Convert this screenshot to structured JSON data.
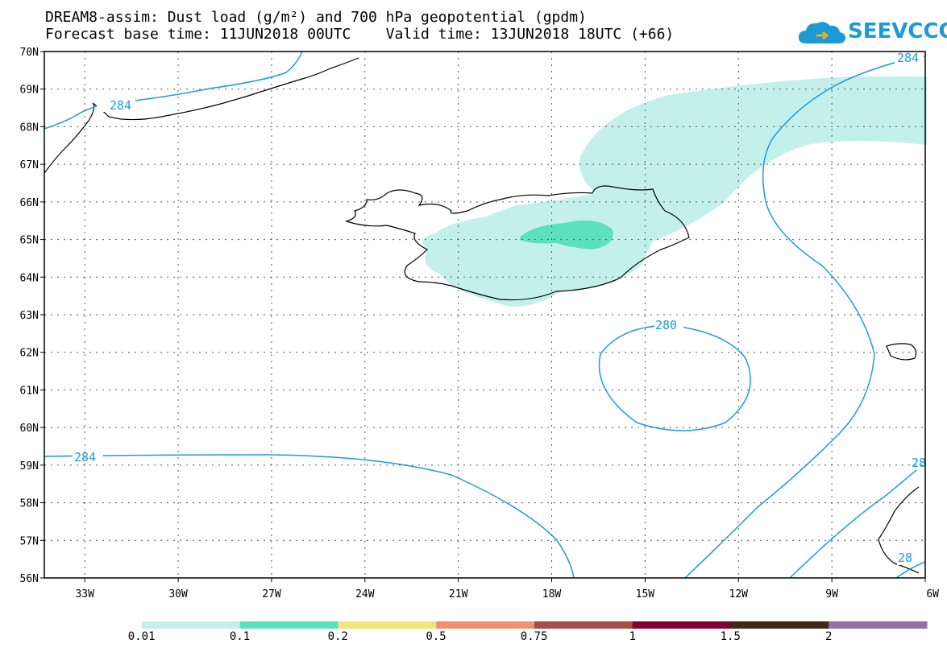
{
  "title": {
    "line1": "DREAM8-assim: Dust load (g/m²) and 700 hPa geopotential (gpdm)",
    "line2": "Forecast base time: 11JUN2018 00UTC    Valid time: 13JUN2018 18UTC (+66)"
  },
  "logo": {
    "text": "SEEVCCC"
  },
  "axes": {
    "lat_labels": [
      "70N",
      "69N",
      "68N",
      "67N",
      "66N",
      "65N",
      "64N",
      "63N",
      "62N",
      "61N",
      "60N",
      "59N",
      "58N",
      "57N",
      "56N"
    ],
    "lon_labels": [
      "33W",
      "30W",
      "27W",
      "24W",
      "21W",
      "18W",
      "15W",
      "12W",
      "9W",
      "6W"
    ]
  },
  "contours": [
    {
      "label": "284"
    },
    {
      "label": "284"
    },
    {
      "label": "280"
    },
    {
      "label": "284"
    },
    {
      "label": "28"
    },
    {
      "label": "28"
    }
  ],
  "colorbar": {
    "colors": [
      "#c4f0eb",
      "#5ce0bd",
      "#f7e37c",
      "#f0916e",
      "#a64e47",
      "#800032",
      "#3e2a16",
      "#9b6fa6"
    ],
    "labels": [
      "0.01",
      "0.1",
      "0.2",
      "0.5",
      "0.75",
      "1",
      "1.5",
      "2"
    ]
  },
  "contour_color": "#1a9be0",
  "dust_colors": {
    "light": "#c4f0eb",
    "medium": "#5ce0bd"
  }
}
